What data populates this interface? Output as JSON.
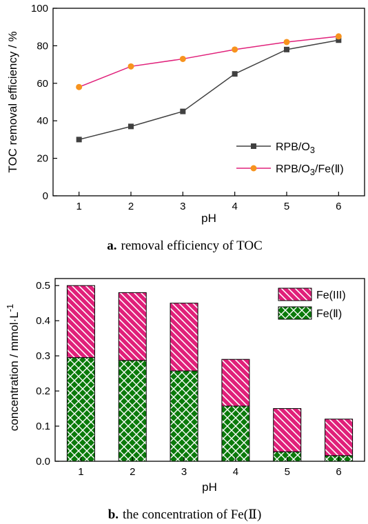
{
  "chart_data": [
    {
      "type": "line",
      "caption_letter": "a.",
      "caption_text": "removal efficiency of TOC",
      "xlabel": "pH",
      "ylabel": "TOC removal efficiency / %",
      "x": [
        1,
        2,
        3,
        4,
        5,
        6
      ],
      "xlim": [
        0.5,
        6.5
      ],
      "ylim": [
        0,
        100
      ],
      "yticks": [
        0,
        20,
        40,
        60,
        80,
        100
      ],
      "legend_position": "bottom-right",
      "series": [
        {
          "name_main": "RPB/O",
          "name_sub": "3",
          "name_tail": "",
          "color": "#404040",
          "marker": "square",
          "values": [
            30,
            37,
            45,
            65,
            78,
            83
          ]
        },
        {
          "name_main": "RPB/O",
          "name_sub": "3",
          "name_tail": "/Fe(Ⅱ)",
          "color": "#e0207a",
          "marker_color": "#f7931e",
          "marker": "circle",
          "values": [
            58,
            69,
            73,
            78,
            82,
            85
          ]
        }
      ]
    },
    {
      "type": "bar",
      "stacked": true,
      "caption_letter": "b.",
      "caption_text": "the concentration of Fe(Ⅱ)",
      "xlabel": "pH",
      "ylabel": "concentration / mmol·L",
      "ylabel_sup": "-1",
      "categories": [
        "1",
        "2",
        "3",
        "4",
        "5",
        "6"
      ],
      "ylim": [
        0,
        0.52
      ],
      "yticks": [
        "0.0",
        "0.1",
        "0.2",
        "0.3",
        "0.4",
        "0.5"
      ],
      "legend_position": "top-right",
      "series": [
        {
          "name": "Fe(Ⅱ)",
          "color": "#0a7a0a",
          "pattern": "crosshatch",
          "values": [
            0.295,
            0.287,
            0.257,
            0.157,
            0.027,
            0.016
          ]
        },
        {
          "name": "Fe(III)",
          "color": "#e0207a",
          "pattern": "diagonal",
          "values": [
            0.205,
            0.193,
            0.193,
            0.133,
            0.123,
            0.104
          ]
        }
      ],
      "totals": [
        0.5,
        0.48,
        0.45,
        0.29,
        0.15,
        0.12
      ]
    }
  ]
}
